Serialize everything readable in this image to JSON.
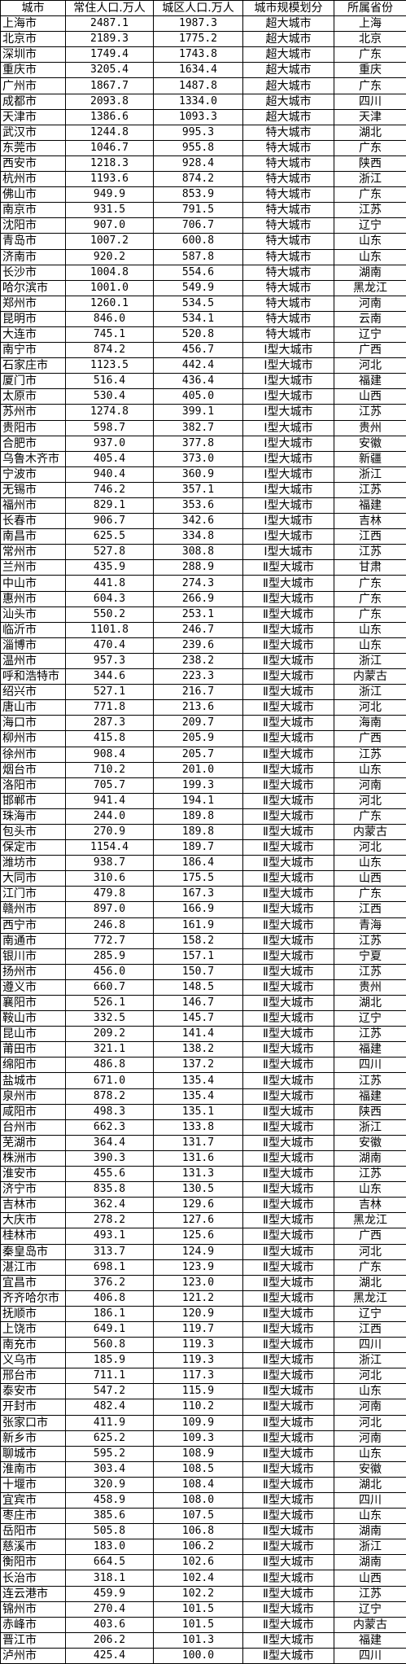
{
  "table": {
    "headers": [
      "城市",
      "常住人口.万人",
      "城区人口.万人",
      "城市规模划分",
      "所属省份"
    ],
    "rows": [
      [
        "上海市",
        "2487.1",
        "1987.3",
        "超大城市",
        "上海"
      ],
      [
        "北京市",
        "2189.3",
        "1775.2",
        "超大城市",
        "北京"
      ],
      [
        "深圳市",
        "1749.4",
        "1743.8",
        "超大城市",
        "广东"
      ],
      [
        "重庆市",
        "3205.4",
        "1634.4",
        "超大城市",
        "重庆"
      ],
      [
        "广州市",
        "1867.7",
        "1487.8",
        "超大城市",
        "广东"
      ],
      [
        "成都市",
        "2093.8",
        "1334.0",
        "超大城市",
        "四川"
      ],
      [
        "天津市",
        "1386.6",
        "1093.3",
        "超大城市",
        "天津"
      ],
      [
        "武汉市",
        "1244.8",
        "995.3",
        "特大城市",
        "湖北"
      ],
      [
        "东莞市",
        "1046.7",
        "955.8",
        "特大城市",
        "广东"
      ],
      [
        "西安市",
        "1218.3",
        "928.4",
        "特大城市",
        "陕西"
      ],
      [
        "杭州市",
        "1193.6",
        "874.2",
        "特大城市",
        "浙江"
      ],
      [
        "佛山市",
        "949.9",
        "853.9",
        "特大城市",
        "广东"
      ],
      [
        "南京市",
        "931.5",
        "791.5",
        "特大城市",
        "江苏"
      ],
      [
        "沈阳市",
        "907.0",
        "706.7",
        "特大城市",
        "辽宁"
      ],
      [
        "青岛市",
        "1007.2",
        "600.8",
        "特大城市",
        "山东"
      ],
      [
        "济南市",
        "920.2",
        "587.8",
        "特大城市",
        "山东"
      ],
      [
        "长沙市",
        "1004.8",
        "554.6",
        "特大城市",
        "湖南"
      ],
      [
        "哈尔滨市",
        "1001.0",
        "549.9",
        "特大城市",
        "黑龙江"
      ],
      [
        "郑州市",
        "1260.1",
        "534.5",
        "特大城市",
        "河南"
      ],
      [
        "昆明市",
        "846.0",
        "534.1",
        "特大城市",
        "云南"
      ],
      [
        "大连市",
        "745.1",
        "520.8",
        "特大城市",
        "辽宁"
      ],
      [
        "南宁市",
        "874.2",
        "456.7",
        "Ⅰ型大城市",
        "广西"
      ],
      [
        "石家庄市",
        "1123.5",
        "442.4",
        "Ⅰ型大城市",
        "河北"
      ],
      [
        "厦门市",
        "516.4",
        "436.4",
        "Ⅰ型大城市",
        "福建"
      ],
      [
        "太原市",
        "530.4",
        "405.0",
        "Ⅰ型大城市",
        "山西"
      ],
      [
        "苏州市",
        "1274.8",
        "399.1",
        "Ⅰ型大城市",
        "江苏"
      ],
      [
        "贵阳市",
        "598.7",
        "382.7",
        "Ⅰ型大城市",
        "贵州"
      ],
      [
        "合肥市",
        "937.0",
        "377.8",
        "Ⅰ型大城市",
        "安徽"
      ],
      [
        "乌鲁木齐市",
        "405.4",
        "373.0",
        "Ⅰ型大城市",
        "新疆"
      ],
      [
        "宁波市",
        "940.4",
        "360.9",
        "Ⅰ型大城市",
        "浙江"
      ],
      [
        "无锡市",
        "746.2",
        "357.1",
        "Ⅰ型大城市",
        "江苏"
      ],
      [
        "福州市",
        "829.1",
        "353.6",
        "Ⅰ型大城市",
        "福建"
      ],
      [
        "长春市",
        "906.7",
        "342.6",
        "Ⅰ型大城市",
        "吉林"
      ],
      [
        "南昌市",
        "625.5",
        "334.8",
        "Ⅰ型大城市",
        "江西"
      ],
      [
        "常州市",
        "527.8",
        "308.8",
        "Ⅰ型大城市",
        "江苏"
      ],
      [
        "兰州市",
        "435.9",
        "288.9",
        "Ⅱ型大城市",
        "甘肃"
      ],
      [
        "中山市",
        "441.8",
        "274.3",
        "Ⅱ型大城市",
        "广东"
      ],
      [
        "惠州市",
        "604.3",
        "266.9",
        "Ⅱ型大城市",
        "广东"
      ],
      [
        "汕头市",
        "550.2",
        "253.1",
        "Ⅱ型大城市",
        "广东"
      ],
      [
        "临沂市",
        "1101.8",
        "246.7",
        "Ⅱ型大城市",
        "山东"
      ],
      [
        "淄博市",
        "470.4",
        "239.6",
        "Ⅱ型大城市",
        "山东"
      ],
      [
        "温州市",
        "957.3",
        "238.2",
        "Ⅱ型大城市",
        "浙江"
      ],
      [
        "呼和浩特市",
        "344.6",
        "223.3",
        "Ⅱ型大城市",
        "内蒙古"
      ],
      [
        "绍兴市",
        "527.1",
        "216.7",
        "Ⅱ型大城市",
        "浙江"
      ],
      [
        "唐山市",
        "771.8",
        "213.6",
        "Ⅱ型大城市",
        "河北"
      ],
      [
        "海口市",
        "287.3",
        "209.7",
        "Ⅱ型大城市",
        "海南"
      ],
      [
        "柳州市",
        "415.8",
        "205.9",
        "Ⅱ型大城市",
        "广西"
      ],
      [
        "徐州市",
        "908.4",
        "205.7",
        "Ⅱ型大城市",
        "江苏"
      ],
      [
        "烟台市",
        "710.2",
        "201.0",
        "Ⅱ型大城市",
        "山东"
      ],
      [
        "洛阳市",
        "705.7",
        "199.3",
        "Ⅱ型大城市",
        "河南"
      ],
      [
        "邯郸市",
        "941.4",
        "194.1",
        "Ⅱ型大城市",
        "河北"
      ],
      [
        "珠海市",
        "244.0",
        "189.8",
        "Ⅱ型大城市",
        "广东"
      ],
      [
        "包头市",
        "270.9",
        "189.8",
        "Ⅱ型大城市",
        "内蒙古"
      ],
      [
        "保定市",
        "1154.4",
        "189.7",
        "Ⅱ型大城市",
        "河北"
      ],
      [
        "潍坊市",
        "938.7",
        "186.4",
        "Ⅱ型大城市",
        "山东"
      ],
      [
        "大同市",
        "310.6",
        "175.5",
        "Ⅱ型大城市",
        "山西"
      ],
      [
        "江门市",
        "479.8",
        "167.3",
        "Ⅱ型大城市",
        "广东"
      ],
      [
        "赣州市",
        "897.0",
        "166.9",
        "Ⅱ型大城市",
        "江西"
      ],
      [
        "西宁市",
        "246.8",
        "161.9",
        "Ⅱ型大城市",
        "青海"
      ],
      [
        "南通市",
        "772.7",
        "158.2",
        "Ⅱ型大城市",
        "江苏"
      ],
      [
        "银川市",
        "285.9",
        "157.1",
        "Ⅱ型大城市",
        "宁夏"
      ],
      [
        "扬州市",
        "456.0",
        "150.7",
        "Ⅱ型大城市",
        "江苏"
      ],
      [
        "遵义市",
        "660.7",
        "148.5",
        "Ⅱ型大城市",
        "贵州"
      ],
      [
        "襄阳市",
        "526.1",
        "146.7",
        "Ⅱ型大城市",
        "湖北"
      ],
      [
        "鞍山市",
        "332.5",
        "145.7",
        "Ⅱ型大城市",
        "辽宁"
      ],
      [
        "昆山市",
        "209.2",
        "141.4",
        "Ⅱ型大城市",
        "江苏"
      ],
      [
        "莆田市",
        "321.1",
        "138.2",
        "Ⅱ型大城市",
        "福建"
      ],
      [
        "绵阳市",
        "486.8",
        "137.2",
        "Ⅱ型大城市",
        "四川"
      ],
      [
        "盐城市",
        "671.0",
        "135.4",
        "Ⅱ型大城市",
        "江苏"
      ],
      [
        "泉州市",
        "878.2",
        "135.4",
        "Ⅱ型大城市",
        "福建"
      ],
      [
        "咸阳市",
        "498.3",
        "135.1",
        "Ⅱ型大城市",
        "陕西"
      ],
      [
        "台州市",
        "662.3",
        "133.8",
        "Ⅱ型大城市",
        "浙江"
      ],
      [
        "芜湖市",
        "364.4",
        "131.7",
        "Ⅱ型大城市",
        "安徽"
      ],
      [
        "株洲市",
        "390.3",
        "131.6",
        "Ⅱ型大城市",
        "湖南"
      ],
      [
        "淮安市",
        "455.6",
        "131.3",
        "Ⅱ型大城市",
        "江苏"
      ],
      [
        "济宁市",
        "835.8",
        "130.5",
        "Ⅱ型大城市",
        "山东"
      ],
      [
        "吉林市",
        "362.4",
        "129.6",
        "Ⅱ型大城市",
        "吉林"
      ],
      [
        "大庆市",
        "278.2",
        "127.6",
        "Ⅱ型大城市",
        "黑龙江"
      ],
      [
        "桂林市",
        "493.1",
        "125.6",
        "Ⅱ型大城市",
        "广西"
      ],
      [
        "秦皇岛市",
        "313.7",
        "124.9",
        "Ⅱ型大城市",
        "河北"
      ],
      [
        "湛江市",
        "698.1",
        "123.9",
        "Ⅱ型大城市",
        "广东"
      ],
      [
        "宜昌市",
        "376.2",
        "123.0",
        "Ⅱ型大城市",
        "湖北"
      ],
      [
        "齐齐哈尔市",
        "406.8",
        "121.2",
        "Ⅱ型大城市",
        "黑龙江"
      ],
      [
        "抚顺市",
        "186.1",
        "120.9",
        "Ⅱ型大城市",
        "辽宁"
      ],
      [
        "上饶市",
        "649.1",
        "119.7",
        "Ⅱ型大城市",
        "江西"
      ],
      [
        "南充市",
        "560.8",
        "119.3",
        "Ⅱ型大城市",
        "四川"
      ],
      [
        "义乌市",
        "185.9",
        "119.3",
        "Ⅱ型大城市",
        "浙江"
      ],
      [
        "邢台市",
        "711.1",
        "117.3",
        "Ⅱ型大城市",
        "河北"
      ],
      [
        "泰安市",
        "547.2",
        "115.9",
        "Ⅱ型大城市",
        "山东"
      ],
      [
        "开封市",
        "482.4",
        "110.2",
        "Ⅱ型大城市",
        "河南"
      ],
      [
        "张家口市",
        "411.9",
        "109.9",
        "Ⅱ型大城市",
        "河北"
      ],
      [
        "新乡市",
        "625.2",
        "109.3",
        "Ⅱ型大城市",
        "河南"
      ],
      [
        "聊城市",
        "595.2",
        "108.9",
        "Ⅱ型大城市",
        "山东"
      ],
      [
        "淮南市",
        "303.4",
        "108.5",
        "Ⅱ型大城市",
        "安徽"
      ],
      [
        "十堰市",
        "320.9",
        "108.4",
        "Ⅱ型大城市",
        "湖北"
      ],
      [
        "宜宾市",
        "458.9",
        "108.0",
        "Ⅱ型大城市",
        "四川"
      ],
      [
        "枣庄市",
        "385.6",
        "107.5",
        "Ⅱ型大城市",
        "山东"
      ],
      [
        "岳阳市",
        "505.8",
        "106.8",
        "Ⅱ型大城市",
        "湖南"
      ],
      [
        "慈溪市",
        "183.0",
        "106.2",
        "Ⅱ型大城市",
        "浙江"
      ],
      [
        "衡阳市",
        "664.5",
        "102.6",
        "Ⅱ型大城市",
        "湖南"
      ],
      [
        "长治市",
        "318.1",
        "102.4",
        "Ⅱ型大城市",
        "山西"
      ],
      [
        "连云港市",
        "459.9",
        "102.2",
        "Ⅱ型大城市",
        "江苏"
      ],
      [
        "锦州市",
        "270.4",
        "101.5",
        "Ⅱ型大城市",
        "辽宁"
      ],
      [
        "赤峰市",
        "403.6",
        "101.5",
        "Ⅱ型大城市",
        "内蒙古"
      ],
      [
        "晋江市",
        "206.2",
        "101.3",
        "Ⅱ型大城市",
        "福建"
      ],
      [
        "泸州市",
        "425.4",
        "100.0",
        "Ⅱ型大城市",
        "四川"
      ]
    ]
  }
}
